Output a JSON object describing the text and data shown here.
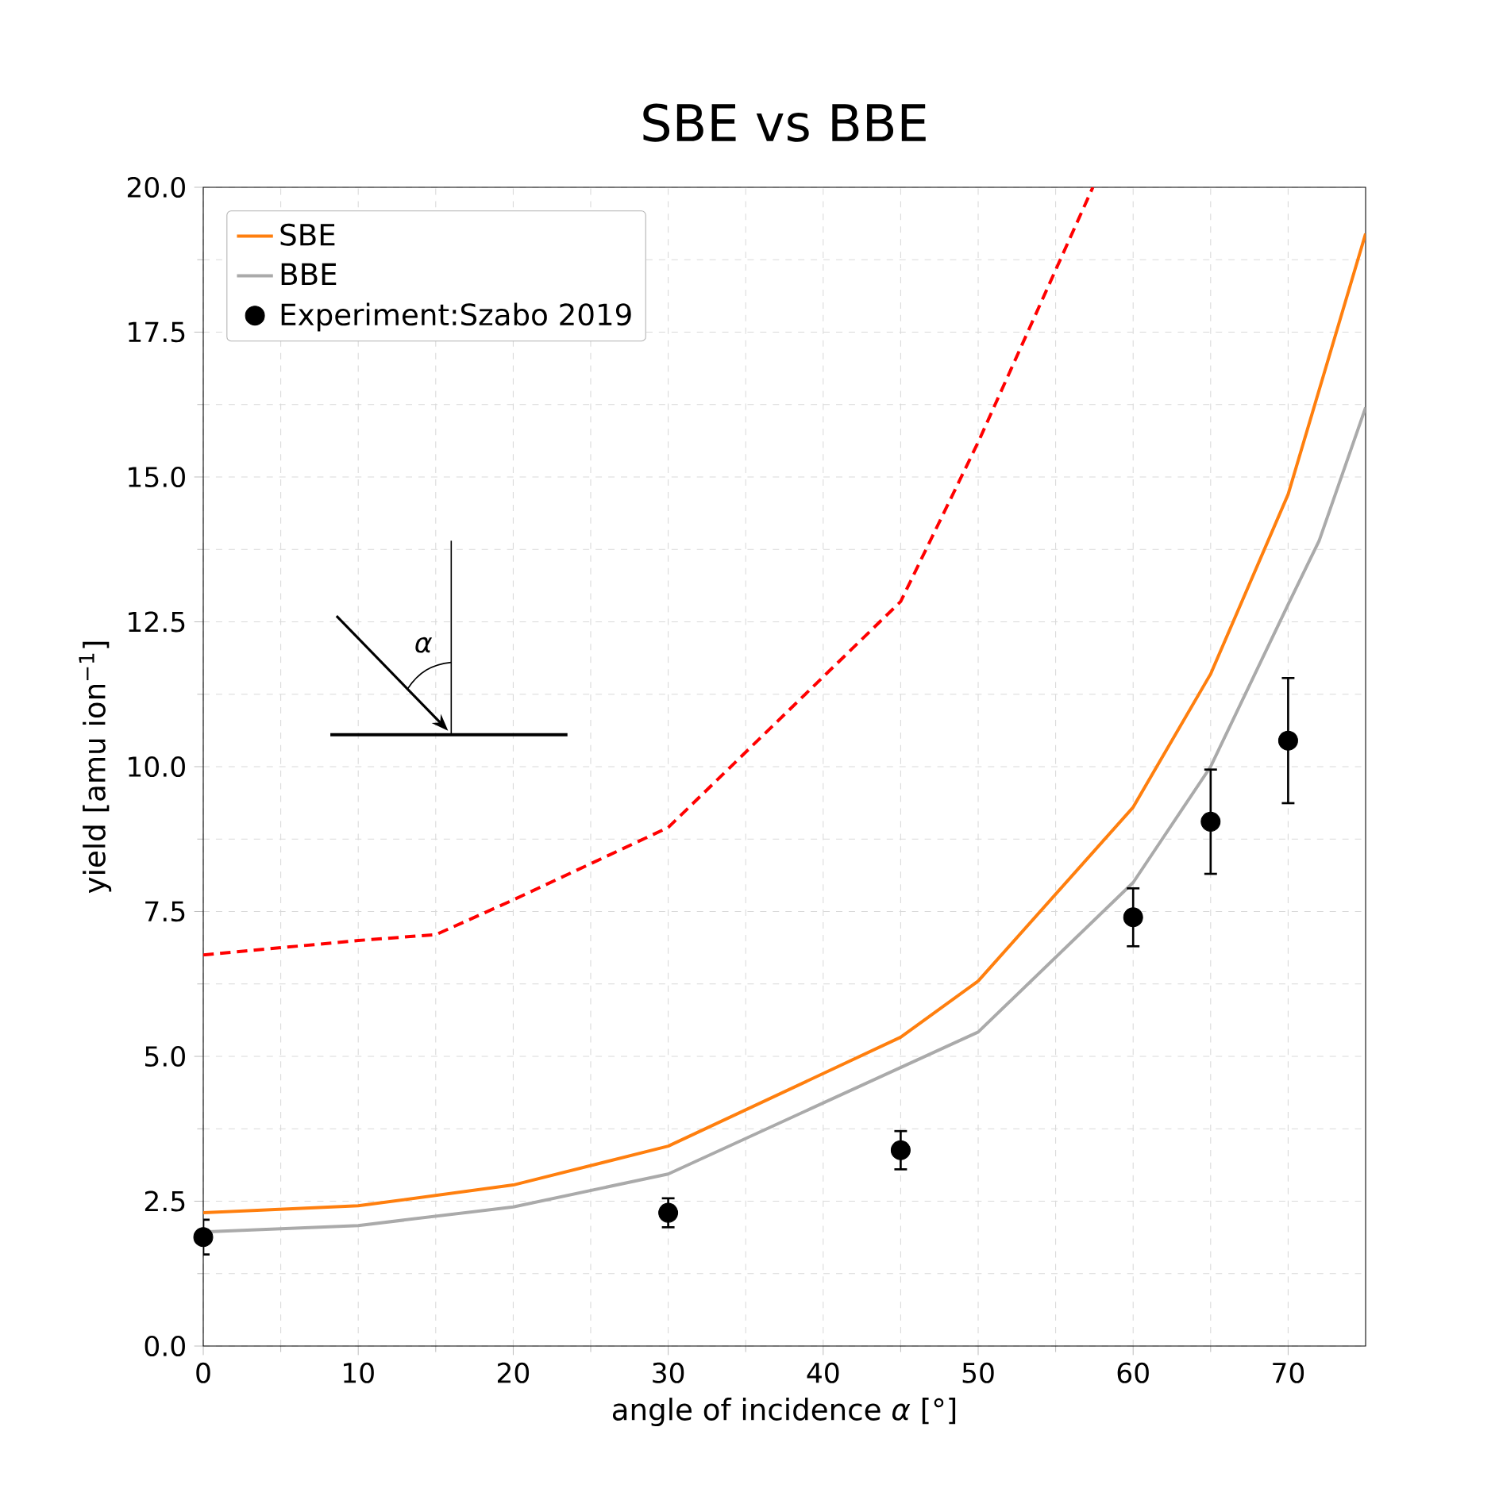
{
  "chart_data": {
    "type": "line",
    "title": "SBE vs BBE",
    "xlabel": "angle of incidence *α* [°]",
    "ylabel": "yield [amu ion$^{−1}$]",
    "xlim": [
      0,
      75
    ],
    "ylim": [
      0,
      20
    ],
    "xticks": [
      0,
      10,
      20,
      30,
      40,
      50,
      60,
      70
    ],
    "yticks": [
      {
        "value": 0,
        "label": "0.0"
      },
      {
        "value": 2.5,
        "label": "2.5"
      },
      {
        "value": 5,
        "label": "5.0"
      },
      {
        "value": 7.5,
        "label": "7.5"
      },
      {
        "value": 10,
        "label": "10.0"
      },
      {
        "value": 12.5,
        "label": "12.5"
      },
      {
        "value": 15,
        "label": "15.0"
      },
      {
        "value": 17.5,
        "label": "17.5"
      },
      {
        "value": 20,
        "label": "20.0"
      }
    ],
    "grid": true,
    "legend": "top left",
    "annotations": [
      "α"
    ],
    "series": [
      {
        "color": "#ff0000",
        "line_style": "dashed",
        "marker": "none",
        "x": [
          0,
          10,
          15,
          20,
          30,
          45,
          50,
          57.4
        ],
        "values": [
          6.75,
          7.0,
          7.1,
          7.7,
          8.95,
          12.85,
          15.6,
          20.0
        ]
      },
      {
        "name": "SBE",
        "color": "#ff7f0e",
        "line_style": "solid",
        "marker": "none",
        "x": [
          0,
          10,
          20,
          30,
          45,
          50,
          60,
          65,
          70,
          75
        ],
        "values": [
          2.3,
          2.42,
          2.78,
          3.45,
          5.33,
          6.3,
          9.3,
          11.6,
          14.7,
          19.2
        ]
      },
      {
        "name": "BBE",
        "color": "#aaaaaa",
        "line_style": "solid",
        "marker": "none",
        "x": [
          0,
          10,
          20,
          30,
          50,
          60,
          65,
          70,
          72,
          75
        ],
        "values": [
          1.97,
          2.08,
          2.4,
          2.97,
          5.42,
          8.0,
          10.0,
          12.8,
          13.9,
          16.2
        ]
      },
      {
        "name": "Experiment:Szabo 2019",
        "type": "scatter",
        "color": "#000000",
        "marker": "circle",
        "x": [
          0,
          30,
          45,
          60,
          65,
          70
        ],
        "values": [
          1.88,
          2.3,
          3.38,
          7.4,
          9.05,
          10.45
        ],
        "errors": [
          0.3,
          0.25,
          0.33,
          0.5,
          0.9,
          1.08
        ]
      }
    ]
  }
}
